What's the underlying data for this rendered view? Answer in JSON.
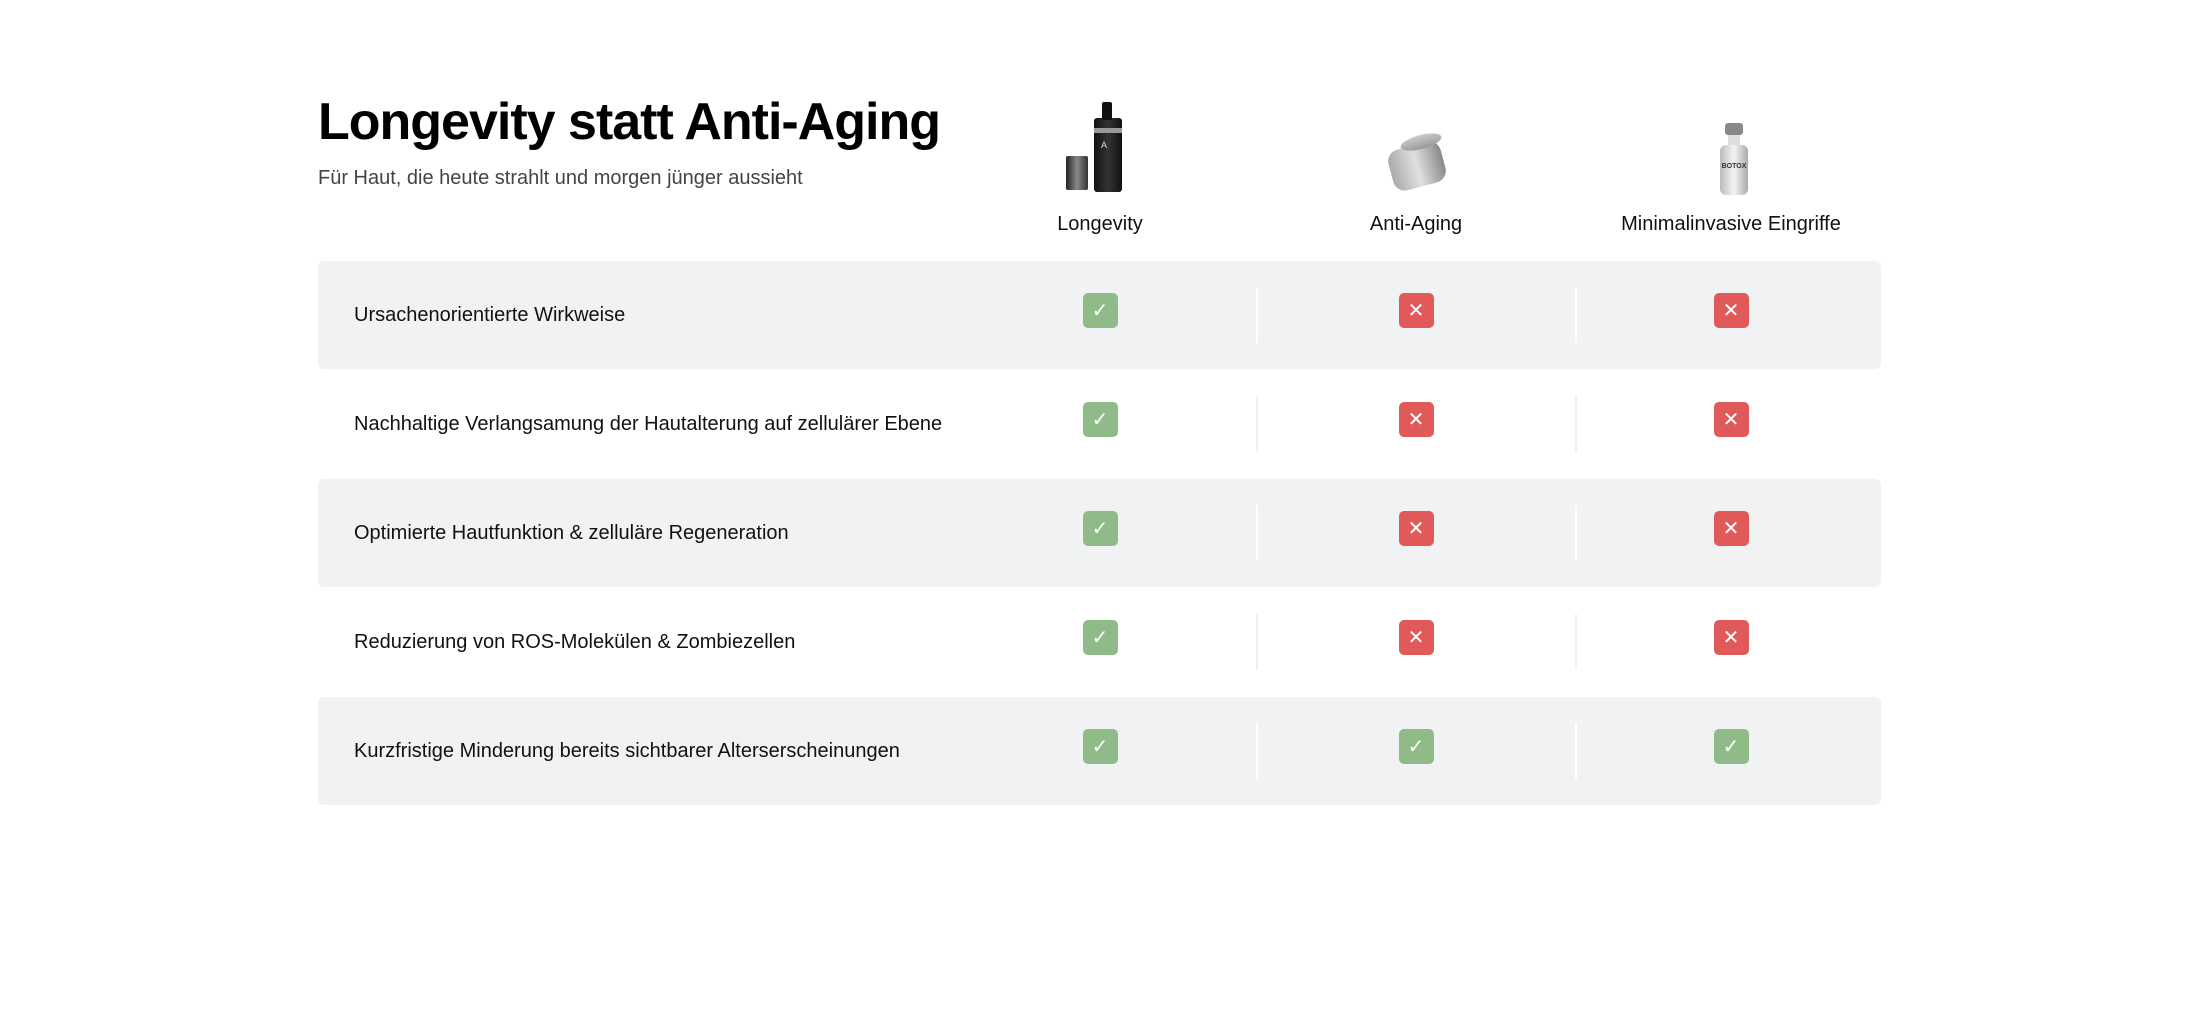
{
  "header": {
    "title": "Longevity statt Anti-Aging",
    "subtitle": "Für Haut, die heute strahlt und morgen jünger aussieht"
  },
  "columns": [
    {
      "label": "Longevity",
      "image": "serum-bottle"
    },
    {
      "label": "Anti-Aging",
      "image": "cream-jar"
    },
    {
      "label": "Minimalinvasive Eingriffe",
      "image": "botox-vial",
      "image_text": "BOTOX"
    }
  ],
  "rows": [
    {
      "label": "Ursachenorientierte Wirkweise",
      "values": [
        true,
        false,
        false
      ]
    },
    {
      "label": "Nachhaltige Verlangsamung der Hautalterung auf zellulärer Ebene",
      "values": [
        true,
        false,
        false
      ]
    },
    {
      "label": "Optimierte Hautfunktion & zelluläre Regeneration",
      "values": [
        true,
        false,
        false
      ]
    },
    {
      "label": "Reduzierung von ROS-Molekülen & Zombiezellen",
      "values": [
        true,
        false,
        false
      ]
    },
    {
      "label": "Kurzfristige Minderung bereits sichtbarer Alterserscheinungen",
      "values": [
        true,
        true,
        true
      ]
    }
  ],
  "colors": {
    "yes": "#8fbb88",
    "no": "#e05a5a",
    "row_alt": "#f1f2f4"
  },
  "icons": {
    "yes": "check-icon",
    "no": "x-icon"
  }
}
